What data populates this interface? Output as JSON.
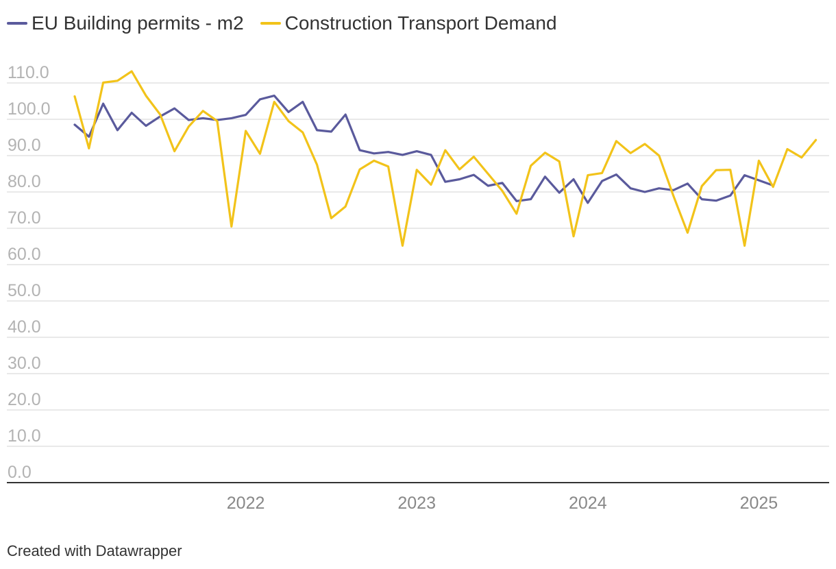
{
  "chart_data": {
    "type": "line",
    "title": "",
    "xlabel": "",
    "ylabel": "",
    "ylim": [
      0,
      110
    ],
    "yticks": [
      "0.0",
      "10.0",
      "20.0",
      "30.0",
      "40.0",
      "50.0",
      "60.0",
      "70.0",
      "80.0",
      "90.0",
      "100.0",
      "110.0"
    ],
    "xticks": [
      "2022",
      "2023",
      "2024",
      "2025"
    ],
    "x_start": "2021-01",
    "grid": true,
    "legend_position": "top-left",
    "series": [
      {
        "name": "EU Building permits - m2",
        "color": "#5a5a9c",
        "values": [
          98.5,
          95.2,
          104.3,
          97.0,
          101.8,
          98.2,
          100.8,
          103.0,
          99.8,
          100.3,
          99.8,
          100.3,
          101.2,
          105.5,
          106.5,
          102.0,
          104.8,
          97.0,
          96.6,
          101.3,
          91.5,
          90.6,
          91.0,
          90.2,
          91.2,
          90.2,
          82.8,
          83.5,
          84.7,
          81.7,
          82.5,
          77.5,
          78.0,
          84.2,
          79.8,
          83.5,
          77.0,
          83.0,
          84.8,
          81.0,
          80.0,
          81.0,
          80.5,
          82.3,
          78.0,
          77.6,
          79.0,
          84.6,
          83.2,
          81.8
        ]
      },
      {
        "name": "Construction Transport Demand",
        "color": "#f2c31a",
        "values": [
          106.3,
          92.0,
          110.1,
          110.6,
          113.2,
          106.5,
          101.3,
          91.2,
          98.0,
          102.3,
          99.5,
          70.5,
          96.8,
          90.5,
          104.8,
          99.5,
          96.4,
          87.5,
          72.8,
          76.0,
          86.2,
          88.6,
          87.0,
          65.2,
          86.1,
          82.0,
          91.5,
          86.2,
          89.7,
          85.0,
          80.3,
          74.0,
          87.2,
          90.8,
          88.4,
          67.8,
          84.6,
          85.2,
          94.0,
          90.7,
          93.2,
          90.0,
          79.0,
          68.8,
          81.6,
          86.0,
          86.1,
          65.2,
          88.6,
          81.4,
          91.8,
          89.5,
          94.3
        ]
      }
    ]
  },
  "footer": {
    "credit": "Created with Datawrapper"
  }
}
